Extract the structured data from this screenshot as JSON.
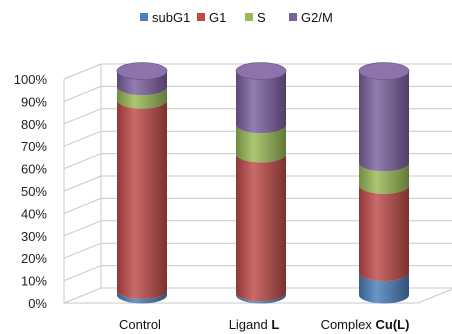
{
  "chart_data": {
    "type": "bar",
    "stacked": true,
    "percent": true,
    "style": "3d-cylinder",
    "categories": [
      "Control",
      "Ligand L",
      "Complex Cu(L)"
    ],
    "category_labels": [
      {
        "plain": "Control",
        "bold": ""
      },
      {
        "plain": "Ligand ",
        "bold": "L"
      },
      {
        "plain": "Complex ",
        "bold": "Cu(L)"
      }
    ],
    "series": [
      {
        "name": "subG1",
        "color": "#4a7ebb",
        "values": [
          2,
          1,
          10
        ]
      },
      {
        "name": "G1",
        "color": "#be4b48",
        "values": [
          85,
          62,
          39
        ]
      },
      {
        "name": "S",
        "color": "#98b954",
        "values": [
          6,
          13,
          10
        ]
      },
      {
        "name": "G2/M",
        "color": "#7d60a0",
        "values": [
          7,
          24,
          41
        ]
      }
    ],
    "yticks": [
      "0%",
      "10%",
      "20%",
      "30%",
      "40%",
      "50%",
      "60%",
      "70%",
      "80%",
      "90%",
      "100%"
    ],
    "ylim": [
      0,
      100
    ],
    "grid": true,
    "legend": "top"
  }
}
